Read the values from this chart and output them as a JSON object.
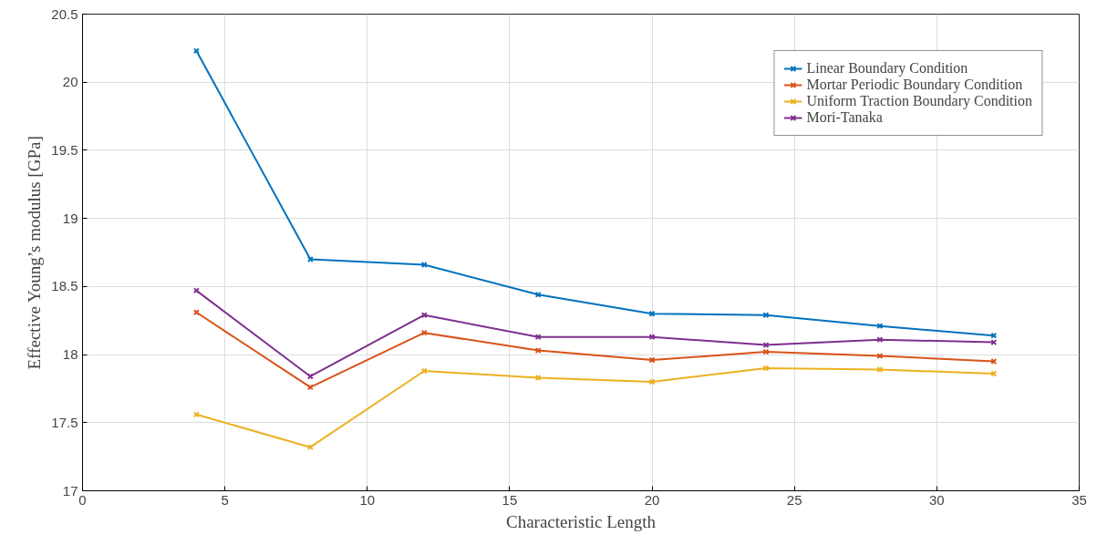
{
  "chart_data": {
    "type": "line",
    "xlabel": "Characteristic Length",
    "ylabel": "Effective Young’s modulus [GPa]",
    "x": [
      4,
      8,
      12,
      16,
      20,
      24,
      28,
      32
    ],
    "series": [
      {
        "name": "Linear Boundary Condition",
        "color": "#0072bd",
        "values": [
          20.23,
          18.7,
          18.66,
          18.44,
          18.3,
          18.29,
          18.21,
          18.14
        ]
      },
      {
        "name": "Mortar Periodic Boundary Condition",
        "color": "#d95319",
        "values": [
          18.31,
          17.76,
          18.16,
          18.03,
          17.96,
          18.02,
          17.99,
          17.95
        ]
      },
      {
        "name": "Uniform Traction Boundary Condition",
        "color": "#edb120",
        "values": [
          17.56,
          17.32,
          17.88,
          17.83,
          17.8,
          17.9,
          17.89,
          17.86
        ]
      },
      {
        "name": "Mori-Tanaka",
        "color": "#7e2f8e",
        "values": [
          18.47,
          17.84,
          18.29,
          18.13,
          18.13,
          18.07,
          18.11,
          18.09
        ]
      }
    ],
    "xlim": [
      0,
      35
    ],
    "ylim": [
      17,
      20.5
    ],
    "xticks": [
      0,
      5,
      10,
      15,
      20,
      25,
      30,
      35
    ],
    "yticks": [
      17,
      17.5,
      18,
      18.5,
      19,
      19.5,
      20,
      20.5
    ],
    "grid": true,
    "legend": "top right",
    "marker": "cross",
    "line_style": "solid"
  }
}
